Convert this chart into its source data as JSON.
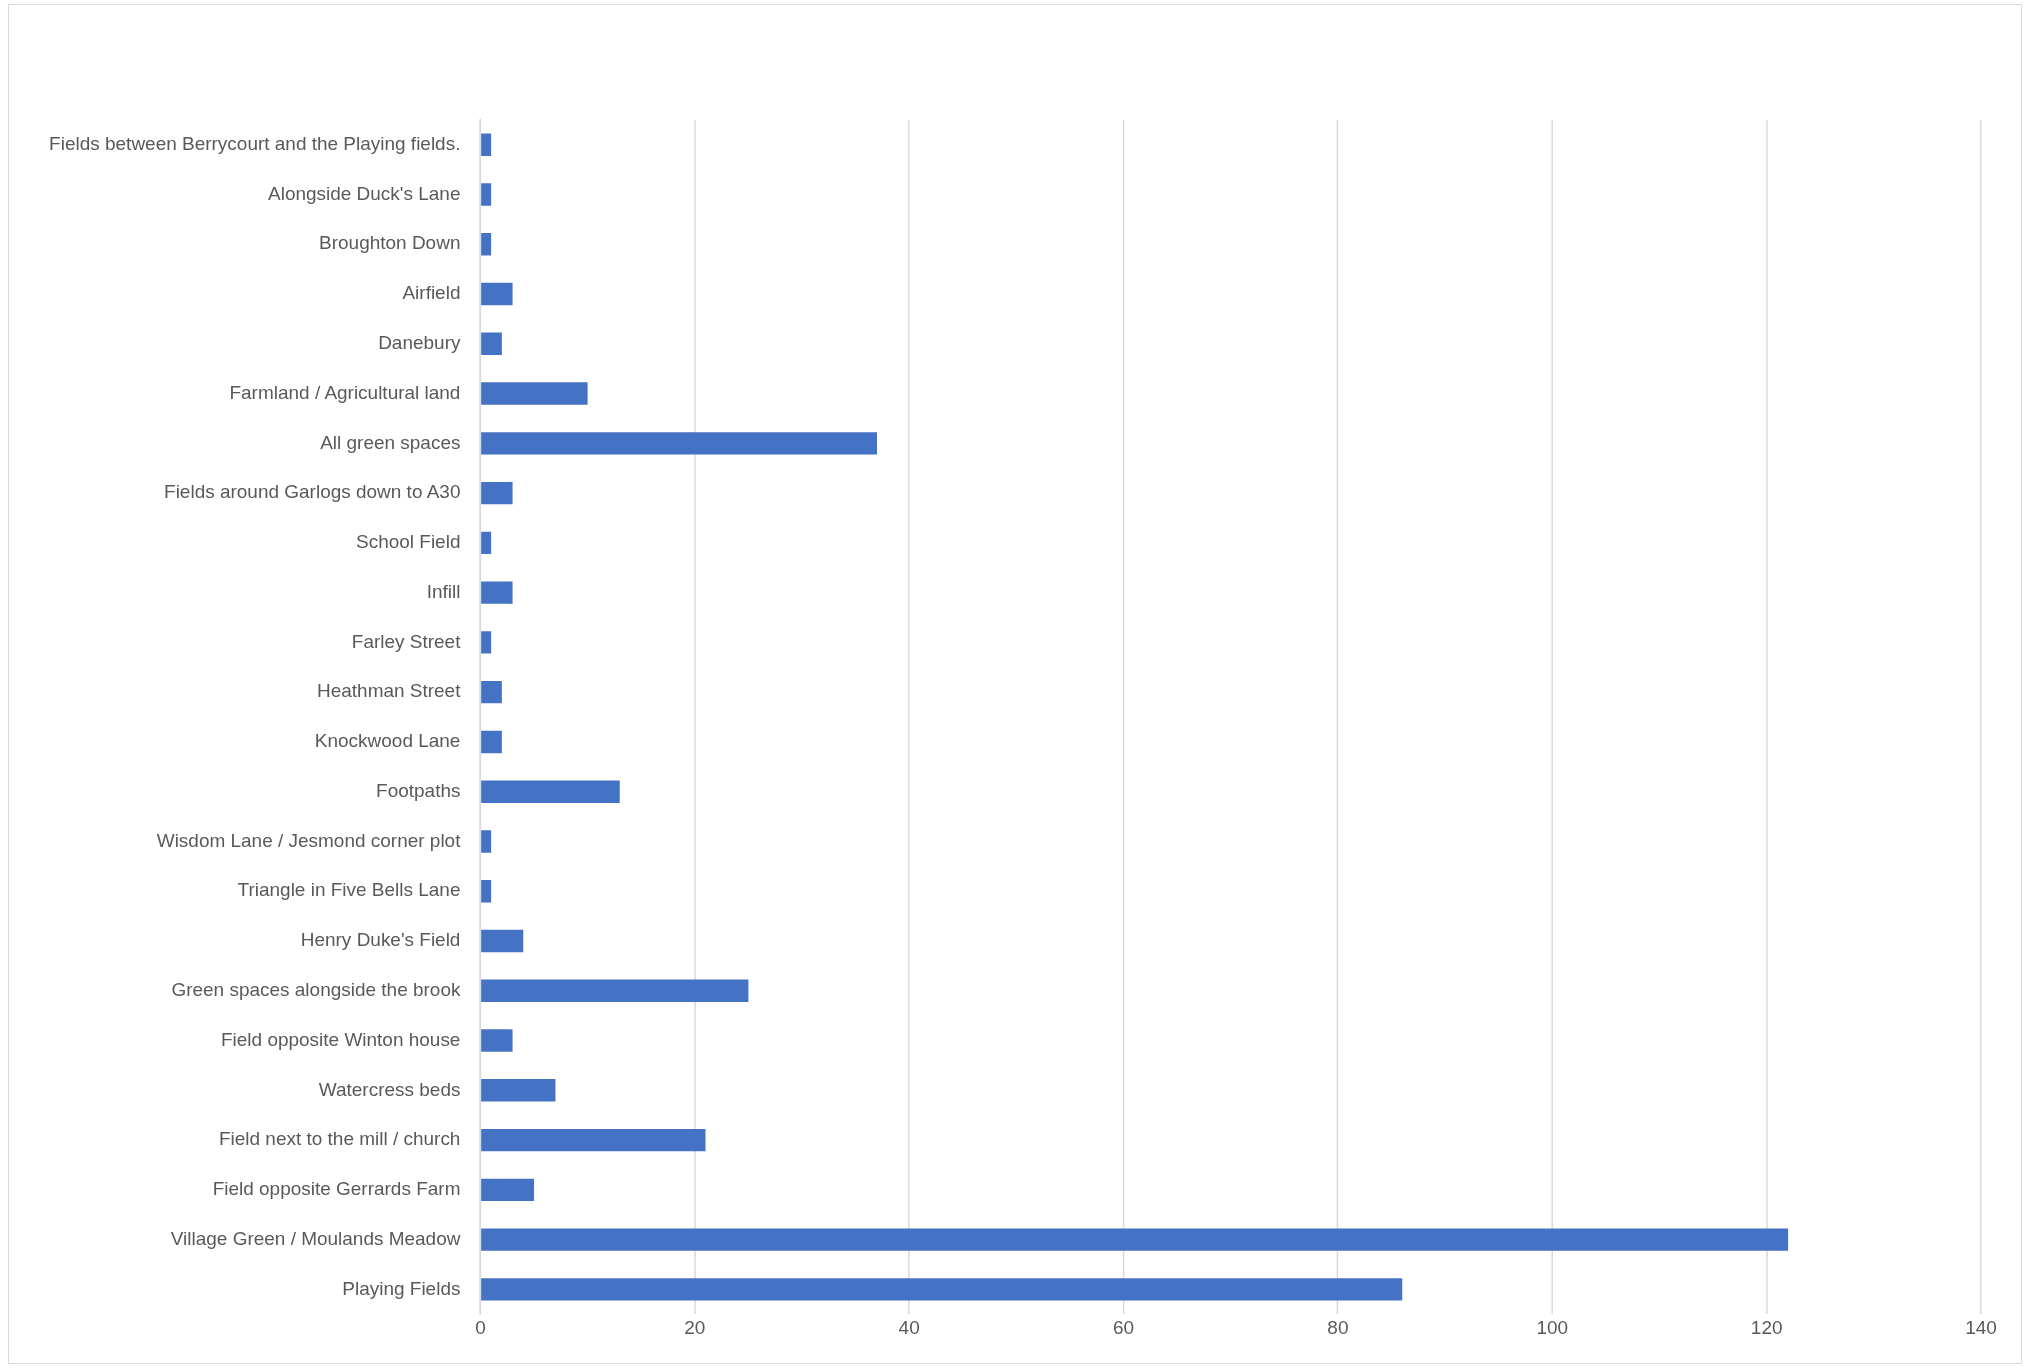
{
  "chart_data": {
    "type": "bar",
    "orientation": "horizontal",
    "categories": [
      "Fields between Berrycourt and the Playing fields.",
      "Alongside Duck's Lane",
      "Broughton Down",
      "Airfield",
      "Danebury",
      "Farmland / Agricultural land",
      "All green spaces",
      "Fields around Garlogs down to A30",
      "School Field",
      "Infill",
      "Farley Street",
      "Heathman Street",
      "Knockwood Lane",
      "Footpaths",
      "Wisdom Lane / Jesmond corner plot",
      "Triangle in Five Bells Lane",
      "Henry Duke's Field",
      "Green spaces alongside the brook",
      "Field opposite Winton house",
      "Watercress beds",
      "Field next to the mill / church",
      "Field opposite Gerrards Farm",
      "Village Green / Moulands Meadow",
      "Playing Fields"
    ],
    "values": [
      1,
      1,
      1,
      3,
      2,
      10,
      37,
      3,
      1,
      3,
      1,
      2,
      2,
      13,
      1,
      1,
      4,
      25,
      3,
      7,
      21,
      5,
      122,
      86
    ],
    "color": "#4472c4",
    "xlim": [
      0,
      140
    ],
    "xticks": [
      0,
      20,
      40,
      60,
      80,
      100,
      120,
      140
    ],
    "grid": "x",
    "legend": false
  }
}
